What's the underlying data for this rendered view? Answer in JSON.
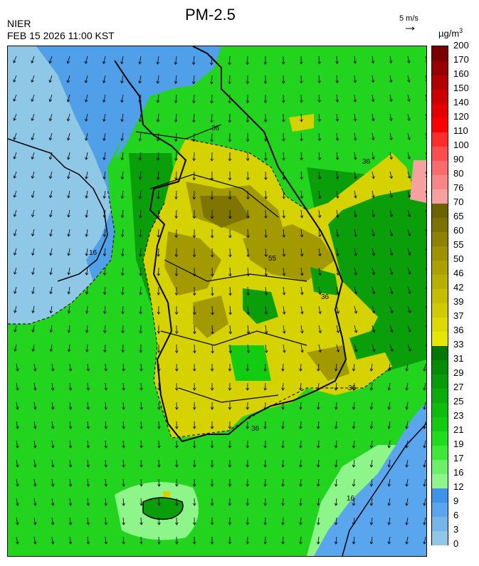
{
  "header": {
    "title": "PM-2.5",
    "agency": "NIER",
    "datetime": "FEB 15 2026 11:00 KST",
    "wind_scale": "5 m/s",
    "unit_base": "µg/m",
    "unit_exp": "3"
  },
  "legend": {
    "levels": [
      {
        "label": "0",
        "color": "#8fc8e6"
      },
      {
        "label": "3",
        "color": "#8fc8e6"
      },
      {
        "label": "6",
        "color": "#74b6ea"
      },
      {
        "label": "9",
        "color": "#5aa6ee"
      },
      {
        "label": "12",
        "color": "#3f93ea"
      },
      {
        "label": "16",
        "color": "#8df58a"
      },
      {
        "label": "17",
        "color": "#6cf06a"
      },
      {
        "label": "19",
        "color": "#3ee83a"
      },
      {
        "label": "21",
        "color": "#1fdd1b"
      },
      {
        "label": "23",
        "color": "#12cc12"
      },
      {
        "label": "25",
        "color": "#0fbd0f"
      },
      {
        "label": "27",
        "color": "#0cac0c"
      },
      {
        "label": "29",
        "color": "#099c09"
      },
      {
        "label": "31",
        "color": "#078c07"
      },
      {
        "label": "33",
        "color": "#047804"
      },
      {
        "label": "36",
        "color": "#e7e600"
      },
      {
        "label": "37",
        "color": "#dbd900"
      },
      {
        "label": "39",
        "color": "#cfcb00"
      },
      {
        "label": "42",
        "color": "#c4bd00"
      },
      {
        "label": "46",
        "color": "#b8b000"
      },
      {
        "label": "50",
        "color": "#aba100"
      },
      {
        "label": "55",
        "color": "#9d9200"
      },
      {
        "label": "60",
        "color": "#8e8300"
      },
      {
        "label": "65",
        "color": "#7c7200"
      },
      {
        "label": "70",
        "color": "#6b6200"
      },
      {
        "label": "76",
        "color": "#f7a0a0"
      },
      {
        "label": "80",
        "color": "#f88686"
      },
      {
        "label": "90",
        "color": "#fa6c6c"
      },
      {
        "label": "100",
        "color": "#fc4e4e"
      },
      {
        "label": "110",
        "color": "#ff2c2c"
      },
      {
        "label": "120",
        "color": "#ff0000"
      },
      {
        "label": "140",
        "color": "#e50000"
      },
      {
        "label": "150",
        "color": "#cc0000"
      },
      {
        "label": "160",
        "color": "#b20000"
      },
      {
        "label": "170",
        "color": "#960000"
      },
      {
        "label": "200",
        "color": "#7a0000"
      }
    ]
  },
  "map": {
    "contour_labels": [
      "36",
      "36",
      "36",
      "36",
      "36",
      "16",
      "16",
      "55"
    ],
    "colors": {
      "sea_low": "#8fc8e6",
      "sea_mid": "#5aa6ee",
      "green": "#22d41e",
      "green_dark": "#0a9e0a",
      "green_light": "#7ef07a",
      "yellow": "#d6d200",
      "olive": "#a39a00",
      "olive_dark": "#7f7500"
    }
  }
}
